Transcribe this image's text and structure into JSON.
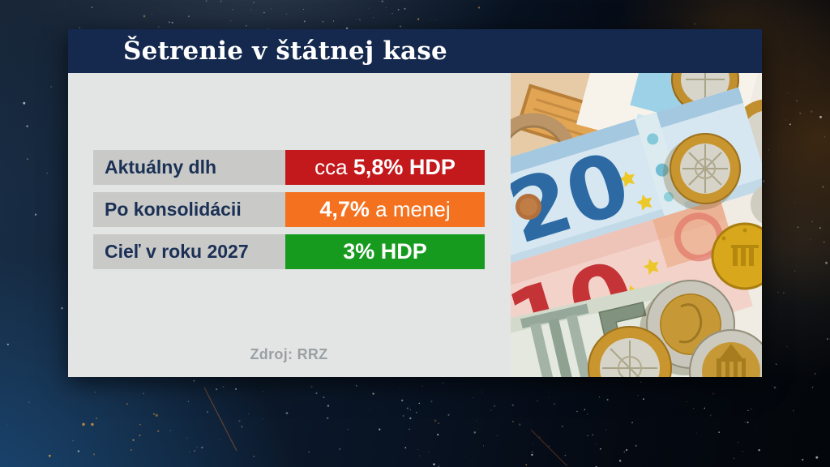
{
  "header": {
    "title": "Šetrenie v štátnej kase"
  },
  "chart_data": {
    "type": "table",
    "title": "Šetrenie v štátnej kase",
    "source": "Zdroj: RRZ",
    "columns": [
      "label",
      "value"
    ],
    "label_bg": "#c9cac8",
    "label_color": "#1b3055",
    "value_color": "#ffffff",
    "rows": [
      {
        "label": "Aktuálny dlh",
        "value": "cca 5,8% HDP",
        "value_prefix": "cca ",
        "value_bold": "5,8% HDP",
        "value_suffix": "",
        "value_bg": "#c3181c"
      },
      {
        "label": "Po konsolidácii",
        "value": "4,7% a menej",
        "value_prefix": "",
        "value_bold": "4,7%",
        "value_suffix": " a menej",
        "value_bg": "#f4711f"
      },
      {
        "label": "Cieľ v roku 2027",
        "value": "3% HDP",
        "value_prefix": "",
        "value_bold": "3% HDP",
        "value_suffix": "",
        "value_bg": "#169b1e"
      }
    ]
  },
  "photo": {
    "banknotes": [
      "20",
      "10",
      "5"
    ]
  },
  "colors": {
    "titlebar_bg": "#14294d",
    "panel_bg": "#e3e5e4",
    "red": "#c3181c",
    "orange": "#f4711f",
    "green": "#169b1e",
    "source_text": "#9aa0a3"
  }
}
